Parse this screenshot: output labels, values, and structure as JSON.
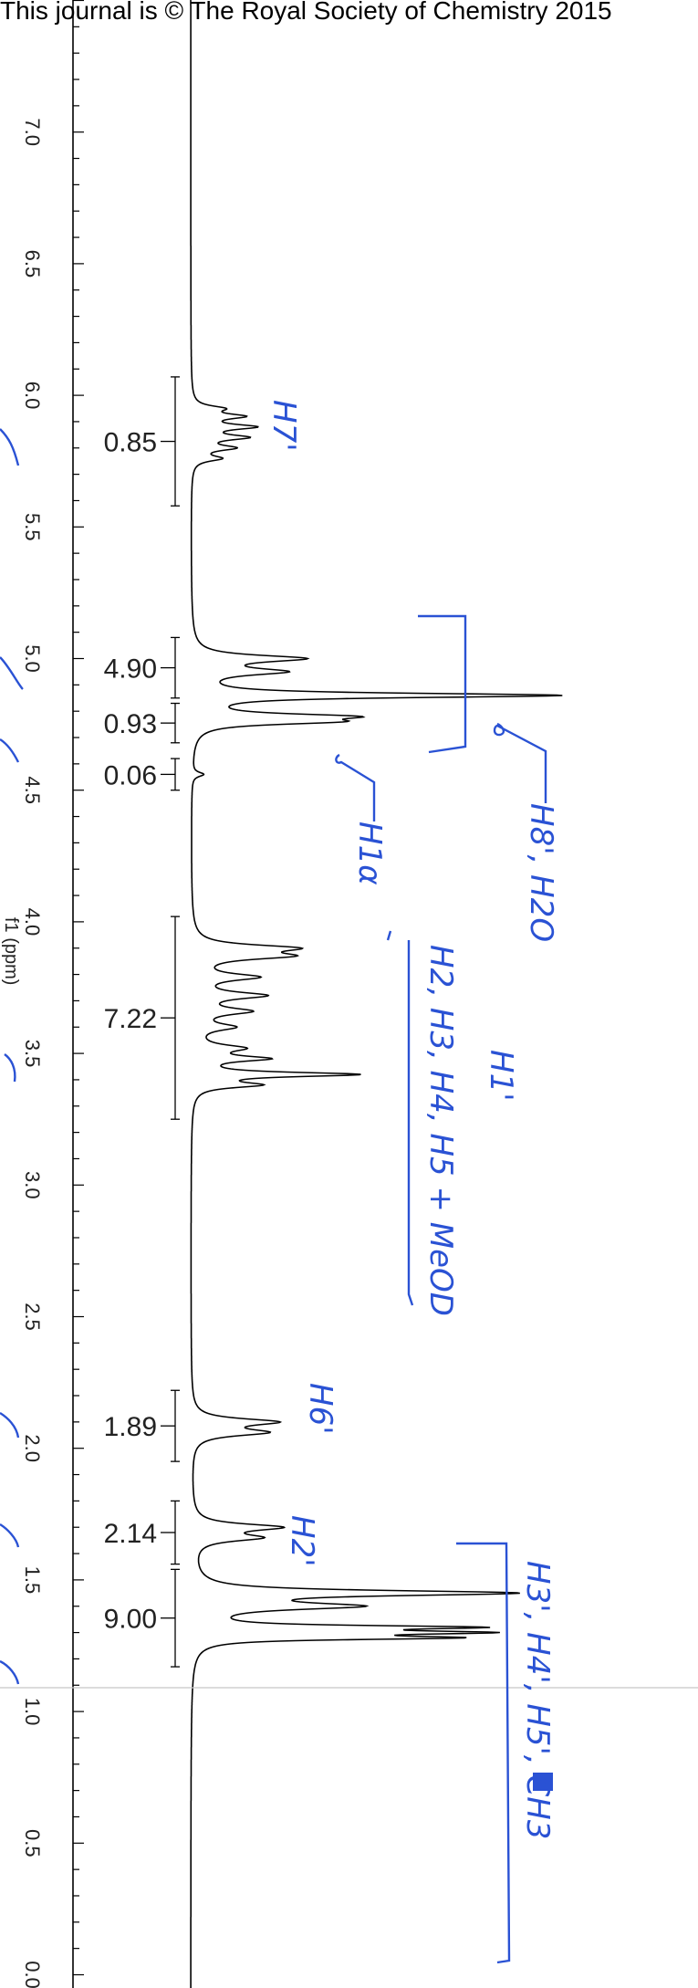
{
  "header": "This journal is © The Royal Society of Chemistry 2015",
  "chart_data": {
    "type": "line",
    "xlabel": "f1 (ppm)",
    "xlim": [
      0.0,
      7.5
    ],
    "ticks": [
      "0.0",
      "0.5",
      "1.0",
      "1.5",
      "2.0",
      "2.5",
      "3.0",
      "3.5",
      "4.0",
      "4.5",
      "5.0",
      "5.5",
      "6.0",
      "6.5",
      "7.0"
    ],
    "integrals": [
      {
        "value": "0.85",
        "from": 6.07,
        "to": 5.58
      },
      {
        "value": "4.90",
        "from": 5.08,
        "to": 4.85
      },
      {
        "value": "0.93",
        "from": 4.83,
        "to": 4.68
      },
      {
        "value": "0.06",
        "from": 4.62,
        "to": 4.5
      },
      {
        "value": "7.22",
        "from": 4.02,
        "to": 3.25
      },
      {
        "value": "1.89",
        "from": 2.22,
        "to": 1.95
      },
      {
        "value": "2.14",
        "from": 1.8,
        "to": 1.56
      },
      {
        "value": "9.00",
        "from": 1.54,
        "to": 1.17
      }
    ],
    "peaks": [
      {
        "ppm": 5.92,
        "height": 0.12,
        "width": 0.012
      },
      {
        "ppm": 5.88,
        "height": 0.15,
        "width": 0.012
      },
      {
        "ppm": 5.84,
        "height": 0.13,
        "width": 0.012
      },
      {
        "ppm": 5.8,
        "height": 0.1,
        "width": 0.012
      },
      {
        "ppm": 5.95,
        "height": 0.07,
        "width": 0.012
      },
      {
        "ppm": 5.76,
        "height": 0.07,
        "width": 0.012
      },
      {
        "ppm": 5.0,
        "height": 0.28,
        "width": 0.015
      },
      {
        "ppm": 4.95,
        "height": 0.22,
        "width": 0.015
      },
      {
        "ppm": 4.86,
        "height": 0.95,
        "width": 0.01
      },
      {
        "ppm": 4.78,
        "height": 0.35,
        "width": 0.012
      },
      {
        "ppm": 4.76,
        "height": 0.3,
        "width": 0.012
      },
      {
        "ppm": 4.56,
        "height": 0.03,
        "width": 0.01
      },
      {
        "ppm": 3.9,
        "height": 0.24,
        "width": 0.015
      },
      {
        "ppm": 3.87,
        "height": 0.22,
        "width": 0.015
      },
      {
        "ppm": 3.79,
        "height": 0.16,
        "width": 0.015
      },
      {
        "ppm": 3.72,
        "height": 0.18,
        "width": 0.015
      },
      {
        "ppm": 3.66,
        "height": 0.14,
        "width": 0.015
      },
      {
        "ppm": 3.6,
        "height": 0.1,
        "width": 0.015
      },
      {
        "ppm": 3.52,
        "height": 0.12,
        "width": 0.015
      },
      {
        "ppm": 3.48,
        "height": 0.18,
        "width": 0.012
      },
      {
        "ppm": 3.42,
        "height": 0.42,
        "width": 0.01
      },
      {
        "ppm": 3.38,
        "height": 0.16,
        "width": 0.012
      },
      {
        "ppm": 2.1,
        "height": 0.21,
        "width": 0.015
      },
      {
        "ppm": 2.06,
        "height": 0.18,
        "width": 0.015
      },
      {
        "ppm": 1.7,
        "height": 0.22,
        "width": 0.015
      },
      {
        "ppm": 1.66,
        "height": 0.16,
        "width": 0.015
      },
      {
        "ppm": 1.45,
        "height": 0.82,
        "width": 0.012
      },
      {
        "ppm": 1.4,
        "height": 0.4,
        "width": 0.015
      },
      {
        "ppm": 1.32,
        "height": 0.65,
        "width": 0.008
      },
      {
        "ppm": 1.3,
        "height": 0.62,
        "width": 0.008
      },
      {
        "ppm": 1.28,
        "height": 0.6,
        "width": 0.008
      }
    ]
  },
  "annotations": {
    "h7": "H7'",
    "h8": "H8', H2O",
    "h1a": "H1α",
    "h2345": "H2, H3, H4, H5 + MeOD",
    "h1": "H1'",
    "h6": "H6'",
    "h2p": "H2'",
    "h345": "H3', H4', H5', CH3"
  },
  "annot_color": "#2a52d4"
}
